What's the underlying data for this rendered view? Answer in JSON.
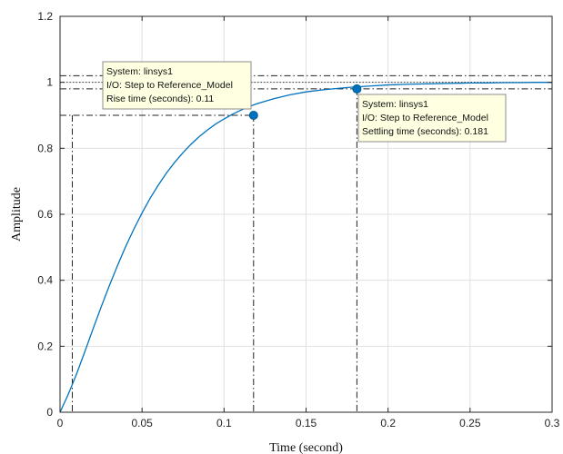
{
  "chart_data": {
    "type": "line",
    "title": "",
    "xlabel": "Time (second)",
    "ylabel": "Amplitude",
    "xlim": [
      0,
      0.3
    ],
    "ylim": [
      0,
      1.2
    ],
    "grid": true,
    "xticks": [
      0,
      0.05,
      0.1,
      0.15,
      0.2,
      0.25,
      0.3
    ],
    "xtick_labels": [
      "0",
      "0.05",
      "0.1",
      "0.15",
      "0.2",
      "0.25",
      "0.3"
    ],
    "yticks": [
      0,
      0.2,
      0.4,
      0.6,
      0.8,
      1,
      1.2
    ],
    "ytick_labels": [
      "0",
      "0.2",
      "0.4",
      "0.6",
      "0.8",
      "1",
      "1.2"
    ],
    "series": [
      {
        "color": "#0072bd",
        "x": [
          0,
          0.005,
          0.01,
          0.015,
          0.02,
          0.025,
          0.03,
          0.035,
          0.04,
          0.045,
          0.05,
          0.055,
          0.06,
          0.065,
          0.07,
          0.075,
          0.08,
          0.085,
          0.09,
          0.095,
          0.1,
          0.105,
          0.11,
          0.115,
          0.12,
          0.13,
          0.14,
          0.15,
          0.16,
          0.17,
          0.18,
          0.19,
          0.2,
          0.21,
          0.22,
          0.23,
          0.24,
          0.25,
          0.26,
          0.27,
          0.28,
          0.29,
          0.3
        ],
        "y": [
          0,
          0.054,
          0.115,
          0.182,
          0.251,
          0.318,
          0.383,
          0.444,
          0.502,
          0.555,
          0.604,
          0.649,
          0.689,
          0.726,
          0.758,
          0.787,
          0.813,
          0.836,
          0.856,
          0.874,
          0.889,
          0.903,
          0.915,
          0.926,
          0.935,
          0.95,
          0.962,
          0.971,
          0.977,
          0.982,
          0.986,
          0.989,
          0.992,
          0.994,
          0.995,
          0.996,
          0.997,
          0.998,
          0.998,
          0.999,
          0.999,
          1,
          1
        ]
      }
    ],
    "reference_lines": {
      "dashdot_horizontal": [
        1.02,
        0.98,
        0.9
      ],
      "dotted_horizontal": [
        1.0
      ],
      "dashdot_vertical": [
        0.0075,
        0.118,
        0.181
      ]
    },
    "annotations": [
      {
        "marker_x": 0.118,
        "marker_y": 0.9,
        "box_anchor": "upper-left",
        "lines": [
          "System: linsys1",
          "I/O: Step to Reference_Model",
          "Rise time (seconds): 0.11"
        ]
      },
      {
        "marker_x": 0.181,
        "marker_y": 0.98,
        "box_anchor": "below-right",
        "lines": [
          "System: linsys1",
          "I/O: Step to Reference_Model",
          "Settling time (seconds): 0.181"
        ]
      }
    ]
  }
}
